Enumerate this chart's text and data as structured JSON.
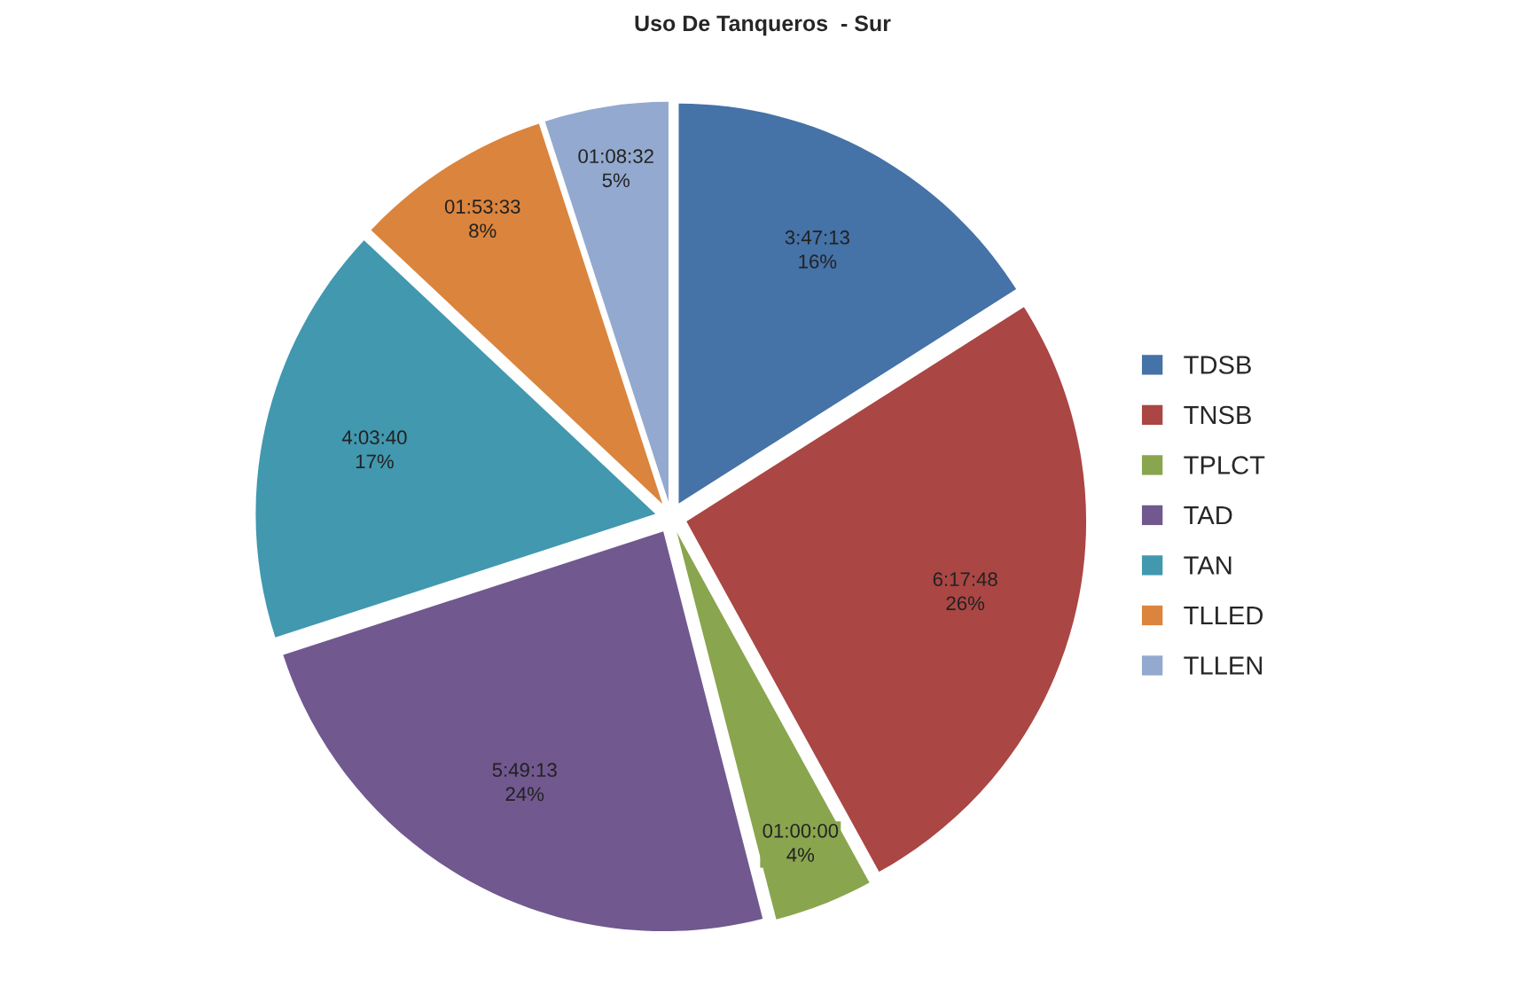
{
  "chart_data": {
    "type": "pie",
    "title": "Uso De Tanqueros  - Sur",
    "categories": [
      "TDSB",
      "TNSB",
      "TPLCT",
      "TAD",
      "TAN",
      "TLLED",
      "TLLEN"
    ],
    "values": [
      16,
      26,
      4,
      24,
      17,
      8,
      5
    ],
    "colors": [
      "#4572a7",
      "#aa4643",
      "#89a54e",
      "#71588f",
      "#4198af",
      "#db843d",
      "#93a9cf"
    ],
    "value_labels": [
      "3:47:13\n16%",
      "6:17:48\n26%",
      "01:00:00\n4%",
      "5:49:13\n24%",
      "4:03:40\n17%",
      "01:53:33\n8%",
      "01:08:32\n5%"
    ],
    "legend": "right"
  }
}
